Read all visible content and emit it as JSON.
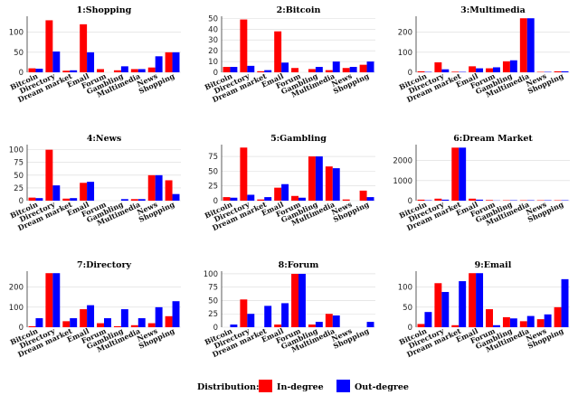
{
  "legend": {
    "title": "Distribution:",
    "entries": [
      {
        "name": "In-degree",
        "color": "#ff0000"
      },
      {
        "name": "Out-degree",
        "color": "#0000ff"
      }
    ]
  },
  "chart_data": [
    {
      "type": "bar",
      "title": "1:Shopping",
      "ylim": [
        0,
        140
      ],
      "yticks": [
        0,
        50,
        100
      ],
      "categories": [
        "Bitcoin",
        "Directory",
        "Dream market",
        "Email",
        "Forum",
        "Gambling",
        "Multimedia",
        "News",
        "Shopping"
      ],
      "series": [
        {
          "name": "In-degree",
          "values": [
            10,
            130,
            4,
            120,
            8,
            5,
            8,
            12,
            50
          ]
        },
        {
          "name": "Out-degree",
          "values": [
            9,
            52,
            5,
            50,
            0,
            15,
            8,
            40,
            50
          ]
        }
      ]
    },
    {
      "type": "bar",
      "title": "2:Bitcoin",
      "ylim": [
        0,
        52
      ],
      "yticks": [
        0,
        10,
        20,
        30,
        40,
        50
      ],
      "categories": [
        "Bitcoin",
        "Directory",
        "Dream market",
        "Email",
        "Forum",
        "Gambling",
        "Multimedia",
        "News",
        "Shopping"
      ],
      "series": [
        {
          "name": "In-degree",
          "values": [
            5,
            49,
            1,
            38,
            4,
            3,
            2,
            4,
            7
          ]
        },
        {
          "name": "Out-degree",
          "values": [
            5,
            6,
            2,
            9,
            0,
            5,
            10,
            5,
            10
          ]
        }
      ]
    },
    {
      "type": "bar",
      "title": "3:Multimedia",
      "ylim": [
        0,
        280
      ],
      "yticks": [
        0,
        100,
        200
      ],
      "categories": [
        "Bitcoin",
        "Directory",
        "Dream market",
        "Email",
        "Forum",
        "Gambling",
        "Multimedia",
        "News",
        "Shopping"
      ],
      "series": [
        {
          "name": "In-degree",
          "values": [
            5,
            50,
            3,
            30,
            20,
            55,
            270,
            2,
            5
          ]
        },
        {
          "name": "Out-degree",
          "values": [
            2,
            15,
            2,
            20,
            25,
            60,
            270,
            2,
            5
          ]
        }
      ]
    },
    {
      "type": "bar",
      "title": "4:News",
      "ylim": [
        0,
        110
      ],
      "yticks": [
        0,
        25,
        50,
        75,
        100
      ],
      "categories": [
        "Bitcoin",
        "Directory",
        "Dream market",
        "Email",
        "Forum",
        "Gambling",
        "Multimedia",
        "News",
        "Shopping"
      ],
      "series": [
        {
          "name": "In-degree",
          "values": [
            6,
            100,
            4,
            35,
            0,
            0,
            3,
            50,
            40
          ]
        },
        {
          "name": "Out-degree",
          "values": [
            5,
            30,
            5,
            37,
            0,
            3,
            3,
            50,
            13
          ]
        }
      ]
    },
    {
      "type": "bar",
      "title": "5:Gambling",
      "ylim": [
        0,
        95
      ],
      "yticks": [
        0,
        25,
        50,
        75
      ],
      "categories": [
        "Bitcoin",
        "Directory",
        "Dream market",
        "Email",
        "Forum",
        "Gambling",
        "Multimedia",
        "News",
        "Shopping"
      ],
      "series": [
        {
          "name": "In-degree",
          "values": [
            6,
            90,
            2,
            22,
            8,
            75,
            58,
            2,
            17
          ]
        },
        {
          "name": "Out-degree",
          "values": [
            5,
            10,
            6,
            28,
            5,
            75,
            55,
            0,
            6
          ]
        }
      ]
    },
    {
      "type": "bar",
      "title": "6:Dream Market",
      "ylim": [
        0,
        2800
      ],
      "yticks": [
        0,
        1000,
        2000
      ],
      "categories": [
        "Bitcoin",
        "Directory",
        "Dream market",
        "Email",
        "Forum",
        "Gambling",
        "Multimedia",
        "News",
        "Shopping"
      ],
      "series": [
        {
          "name": "In-degree",
          "values": [
            50,
            100,
            2650,
            100,
            30,
            20,
            20,
            20,
            20
          ]
        },
        {
          "name": "Out-degree",
          "values": [
            20,
            50,
            2650,
            50,
            10,
            20,
            20,
            20,
            20
          ]
        }
      ]
    },
    {
      "type": "bar",
      "title": "7:Directory",
      "ylim": [
        0,
        280
      ],
      "yticks": [
        0,
        100,
        200
      ],
      "categories": [
        "Bitcoin",
        "Directory",
        "Dream market",
        "Email",
        "Forum",
        "Gambling",
        "Multimedia",
        "News",
        "Shopping"
      ],
      "series": [
        {
          "name": "In-degree",
          "values": [
            5,
            270,
            30,
            90,
            20,
            5,
            10,
            20,
            55
          ]
        },
        {
          "name": "Out-degree",
          "values": [
            45,
            270,
            45,
            110,
            45,
            90,
            45,
            100,
            130
          ]
        }
      ]
    },
    {
      "type": "bar",
      "title": "8:Forum",
      "ylim": [
        0,
        105
      ],
      "yticks": [
        0,
        25,
        50,
        75,
        100
      ],
      "categories": [
        "Bitcoin",
        "Directory",
        "Dream market",
        "Email",
        "Forum",
        "Gambling",
        "Multimedia",
        "News",
        "Shopping"
      ],
      "series": [
        {
          "name": "In-degree",
          "values": [
            0,
            52,
            0,
            5,
            100,
            5,
            25,
            0,
            0
          ]
        },
        {
          "name": "Out-degree",
          "values": [
            5,
            25,
            40,
            45,
            100,
            10,
            22,
            0,
            10
          ]
        }
      ]
    },
    {
      "type": "bar",
      "title": "9:Email",
      "ylim": [
        0,
        140
      ],
      "yticks": [
        0,
        50,
        100
      ],
      "categories": [
        "Bitcoin",
        "Directory",
        "Dream market",
        "Email",
        "Forum",
        "Gambling",
        "Multimedia",
        "News",
        "Shopping"
      ],
      "series": [
        {
          "name": "In-degree",
          "values": [
            8,
            110,
            5,
            135,
            45,
            25,
            15,
            20,
            50
          ]
        },
        {
          "name": "Out-degree",
          "values": [
            38,
            88,
            115,
            135,
            5,
            22,
            28,
            32,
            120
          ]
        }
      ]
    }
  ]
}
